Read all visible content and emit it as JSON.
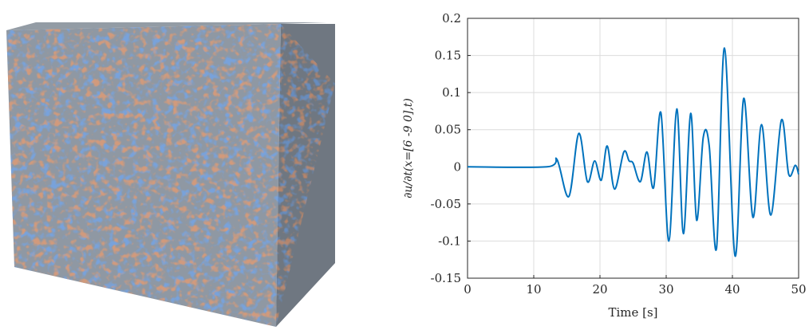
{
  "figure": {
    "left_panel": "3d-cube-random-field",
    "cube_colors": {
      "base": "#8f98a3",
      "red": "#b8532e",
      "blue": "#2f5fc2",
      "shade": "#5b5f66"
    }
  },
  "chart_data": {
    "type": "line",
    "title": "",
    "xlabel": "Time [s]",
    "ylabel": "∂u/∂t(x=[6 -9 0],t)",
    "xlim": [
      0,
      50
    ],
    "ylim": [
      -0.15,
      0.2
    ],
    "xticks": [
      0,
      10,
      20,
      30,
      40,
      50
    ],
    "xtick_labels": [
      "0",
      "10",
      "20",
      "30",
      "40",
      "50"
    ],
    "yticks": [
      -0.15,
      -0.1,
      -0.05,
      0,
      0.05,
      0.1,
      0.15,
      0.2
    ],
    "ytick_labels": [
      "-0.15",
      "-0.1",
      "-0.05",
      "0",
      "0.05",
      "0.1",
      "0.15",
      "0.2"
    ],
    "grid": true,
    "line_color": "#0072bd",
    "series": [
      {
        "x": [
          0,
          12,
          13.5,
          15.3,
          16.8,
          18.1,
          19.2,
          20.2,
          21.1,
          22.2,
          23.6,
          24.4,
          25.0,
          26.1,
          27.1,
          28.1,
          29.2,
          30.4,
          31.6,
          32.6,
          33.7,
          34.6,
          35.6,
          36.5,
          37.6,
          38.8,
          40.4,
          41.7,
          43.1,
          44.4,
          45.8,
          47.4,
          48.5,
          49.5,
          50
        ],
        "y": [
          0,
          0,
          0.01,
          -0.04,
          0.045,
          -0.02,
          0.008,
          -0.018,
          0.028,
          -0.03,
          0.02,
          0.008,
          0.005,
          -0.02,
          0.02,
          -0.028,
          0.073,
          -0.1,
          0.078,
          -0.09,
          0.072,
          -0.072,
          0.04,
          0.028,
          -0.11,
          0.16,
          -0.12,
          0.092,
          -0.068,
          0.057,
          -0.065,
          0.063,
          -0.01,
          0.002,
          -0.01
        ]
      }
    ]
  }
}
